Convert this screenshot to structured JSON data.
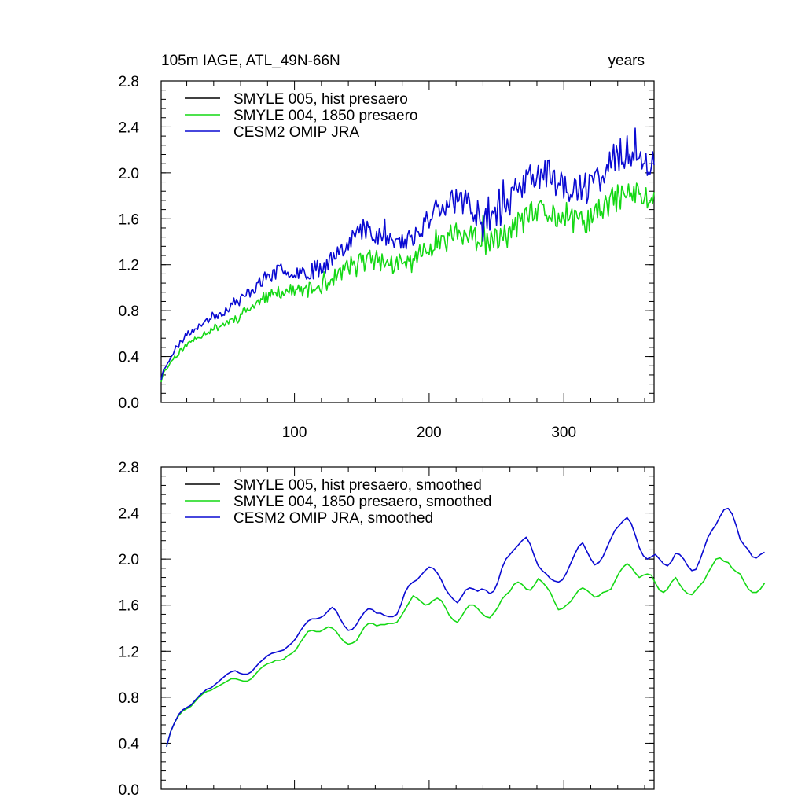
{
  "figure": {
    "title_left": "105m IAGE, ATL_49N-66N",
    "title_right": "years"
  },
  "colors": {
    "black": "#000000",
    "green": "#14d814",
    "blue": "#0a0ad2"
  },
  "chart_data": [
    {
      "type": "line",
      "title": "105m IAGE, ATL_49N-66N",
      "units": "years",
      "xlim": [
        1,
        367
      ],
      "ylim": [
        0,
        2.8
      ],
      "xticks": [
        100,
        200,
        300
      ],
      "xtick_labels": [
        "100",
        "200",
        "300"
      ],
      "yticks": [
        0,
        0.4,
        0.8,
        1.2,
        1.6,
        2.0,
        2.4,
        2.8
      ],
      "ytick_labels": [
        "0.0",
        "0.4",
        "0.8",
        "1.2",
        "1.6",
        "2.0",
        "2.4",
        "2.8"
      ],
      "legend_position": "top-left",
      "x_start": 1,
      "x_step": 1,
      "series": [
        {
          "name": "SMYLE 005, hist presaero",
          "color": "#000000",
          "values": []
        },
        {
          "name": "SMYLE 004, 1850 presaero",
          "color": "#14d814",
          "model": {
            "base_mode": "power",
            "A": 0.1,
            "p": 0.5,
            "final": 1.78,
            "n": 367,
            "noise": 0.12,
            "cycle": 0.08,
            "seed": 11
          }
        },
        {
          "name": "CESM2 OMIP JRA",
          "color": "#0a0ad2",
          "model": {
            "base_mode": "power",
            "A": 0.1,
            "p": 0.5,
            "final": 2.12,
            "n": 367,
            "noise": 0.14,
            "cycle": 0.12,
            "seed": 23
          }
        }
      ]
    },
    {
      "type": "line",
      "title": "",
      "xlim": [
        1,
        367
      ],
      "ylim": [
        0,
        2.8
      ],
      "xticks": [
        100,
        200,
        300
      ],
      "xtick_labels": [],
      "yticks": [
        0,
        0.4,
        0.8,
        1.2,
        1.6,
        2.0,
        2.4,
        2.8
      ],
      "ytick_labels": [
        "0.0",
        "0.4",
        "0.8",
        "1.2",
        "1.6",
        "2.0",
        "2.4",
        "2.8"
      ],
      "legend_position": "top-left",
      "x_start": 5,
      "x_step": 3,
      "series": [
        {
          "name": "SMYLE 005, hist presaero, smoothed",
          "color": "#000000",
          "values": []
        },
        {
          "name": "SMYLE 004, 1850 presaero, smoothed",
          "color": "#14d814",
          "values": [
            0.37,
            0.5,
            0.58,
            0.64,
            0.68,
            0.7,
            0.72,
            0.76,
            0.8,
            0.83,
            0.85,
            0.86,
            0.88,
            0.9,
            0.92,
            0.94,
            0.96,
            0.96,
            0.95,
            0.94,
            0.94,
            0.96,
            1.0,
            1.04,
            1.07,
            1.09,
            1.1,
            1.12,
            1.12,
            1.13,
            1.16,
            1.18,
            1.21,
            1.27,
            1.32,
            1.37,
            1.38,
            1.37,
            1.37,
            1.39,
            1.41,
            1.4,
            1.37,
            1.32,
            1.28,
            1.26,
            1.27,
            1.29,
            1.35,
            1.41,
            1.44,
            1.44,
            1.42,
            1.43,
            1.43,
            1.44,
            1.44,
            1.45,
            1.5,
            1.56,
            1.62,
            1.68,
            1.66,
            1.63,
            1.6,
            1.61,
            1.64,
            1.66,
            1.64,
            1.58,
            1.51,
            1.47,
            1.45,
            1.5,
            1.56,
            1.6,
            1.6,
            1.57,
            1.53,
            1.5,
            1.49,
            1.53,
            1.58,
            1.65,
            1.69,
            1.72,
            1.78,
            1.8,
            1.78,
            1.74,
            1.73,
            1.77,
            1.83,
            1.8,
            1.76,
            1.71,
            1.63,
            1.56,
            1.57,
            1.6,
            1.63,
            1.68,
            1.73,
            1.75,
            1.73,
            1.7,
            1.67,
            1.68,
            1.71,
            1.72,
            1.74,
            1.81,
            1.88,
            1.93,
            1.96,
            1.93,
            1.88,
            1.84,
            1.86,
            1.87,
            1.86,
            1.79,
            1.73,
            1.71,
            1.74,
            1.8,
            1.84,
            1.78,
            1.73,
            1.7,
            1.69,
            1.73,
            1.77,
            1.81,
            1.88,
            1.94,
            2.0,
            2.01,
            1.98,
            1.97,
            1.92,
            1.89,
            1.87,
            1.8,
            1.74,
            1.71,
            1.71,
            1.74,
            1.79
          ]
        },
        {
          "name": "CESM2 OMIP JRA, smoothed",
          "color": "#0a0ad2",
          "values": [
            0.37,
            0.5,
            0.58,
            0.65,
            0.69,
            0.71,
            0.73,
            0.77,
            0.81,
            0.84,
            0.87,
            0.88,
            0.91,
            0.94,
            0.97,
            1.0,
            1.02,
            1.03,
            1.01,
            1.0,
            1.0,
            1.02,
            1.06,
            1.1,
            1.13,
            1.16,
            1.18,
            1.19,
            1.2,
            1.21,
            1.24,
            1.27,
            1.31,
            1.37,
            1.42,
            1.46,
            1.48,
            1.48,
            1.49,
            1.51,
            1.55,
            1.58,
            1.55,
            1.48,
            1.42,
            1.38,
            1.39,
            1.43,
            1.49,
            1.54,
            1.57,
            1.56,
            1.53,
            1.53,
            1.51,
            1.5,
            1.5,
            1.52,
            1.6,
            1.71,
            1.77,
            1.8,
            1.82,
            1.86,
            1.9,
            1.93,
            1.92,
            1.88,
            1.82,
            1.74,
            1.69,
            1.65,
            1.62,
            1.67,
            1.73,
            1.75,
            1.74,
            1.72,
            1.74,
            1.73,
            1.7,
            1.72,
            1.8,
            1.92,
            2.0,
            2.04,
            2.08,
            2.12,
            2.16,
            2.19,
            2.13,
            2.03,
            1.94,
            1.9,
            1.87,
            1.83,
            1.81,
            1.8,
            1.82,
            1.88,
            1.96,
            2.04,
            2.11,
            2.14,
            2.07,
            2.0,
            1.95,
            1.97,
            2.02,
            2.1,
            2.18,
            2.25,
            2.29,
            2.33,
            2.36,
            2.31,
            2.21,
            2.1,
            2.03,
            2.0,
            2.02,
            2.04,
            2.0,
            1.96,
            1.94,
            1.98,
            2.05,
            2.04,
            2.0,
            1.94,
            1.9,
            1.91,
            1.99,
            2.09,
            2.19,
            2.25,
            2.3,
            2.37,
            2.43,
            2.44,
            2.39,
            2.29,
            2.17,
            2.12,
            2.08,
            2.02,
            2.01,
            2.04,
            2.06
          ]
        }
      ]
    }
  ]
}
